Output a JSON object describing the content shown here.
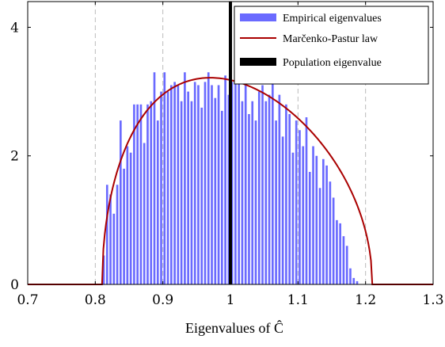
{
  "chart_data": {
    "type": "bar",
    "xlabel": "Eigenvalues of Ĉ",
    "ylabel": "",
    "xlim": [
      0.7,
      1.3
    ],
    "ylim": [
      0,
      4.4
    ],
    "x_ticks": [
      "0.7",
      "0.8",
      "0.9",
      "1",
      "1.1",
      "1.2",
      "1.3"
    ],
    "y_ticks": [
      "0",
      "2",
      "4"
    ],
    "grid": "vertical dashed at 0.8, 0.9, 1.1, 1.2",
    "legend_position": "top-right",
    "bin_width": 0.005,
    "series": [
      {
        "name": "Empirical eigenvalues",
        "kind": "histogram",
        "color": "#6a6aff",
        "bin_centers": [
          0.8125,
          0.8175,
          0.8225,
          0.8275,
          0.8325,
          0.8375,
          0.8425,
          0.8475,
          0.8525,
          0.8575,
          0.8625,
          0.8675,
          0.8725,
          0.8775,
          0.8825,
          0.8875,
          0.8925,
          0.8975,
          0.9025,
          0.9075,
          0.9125,
          0.9175,
          0.9225,
          0.9275,
          0.9325,
          0.9375,
          0.9425,
          0.9475,
          0.9525,
          0.9575,
          0.9625,
          0.9675,
          0.9725,
          0.9775,
          0.9825,
          0.9875,
          0.9925,
          0.9975,
          1.0025,
          1.0075,
          1.0125,
          1.0175,
          1.0225,
          1.0275,
          1.0325,
          1.0375,
          1.0425,
          1.0475,
          1.0525,
          1.0575,
          1.0625,
          1.0675,
          1.0725,
          1.0775,
          1.0825,
          1.0875,
          1.0925,
          1.0975,
          1.1025,
          1.1075,
          1.1125,
          1.1175,
          1.1225,
          1.1275,
          1.1325,
          1.1375,
          1.1425,
          1.1475,
          1.1525,
          1.1575,
          1.1625,
          1.1675,
          1.1725,
          1.1775,
          1.1825,
          1.1875,
          1.1925,
          1.1975,
          1.2025,
          1.2075
        ],
        "values": [
          0.45,
          1.55,
          1.4,
          1.1,
          1.55,
          2.55,
          1.8,
          2.15,
          2.05,
          2.8,
          2.8,
          2.8,
          2.2,
          2.8,
          2.85,
          3.3,
          2.55,
          3.0,
          3.3,
          3.0,
          3.1,
          3.15,
          3.1,
          2.85,
          3.3,
          3.0,
          2.85,
          3.15,
          3.1,
          2.75,
          3.15,
          3.3,
          3.1,
          2.9,
          3.1,
          2.7,
          3.25,
          2.95,
          3.15,
          3.3,
          3.15,
          2.85,
          3.15,
          2.65,
          2.85,
          2.55,
          3.0,
          3.1,
          2.85,
          2.95,
          3.3,
          2.55,
          2.95,
          2.3,
          2.8,
          2.65,
          2.05,
          2.55,
          2.4,
          2.15,
          2.6,
          1.75,
          2.15,
          2.0,
          1.5,
          1.95,
          1.85,
          1.6,
          1.35,
          1.0,
          0.95,
          0.75,
          0.6,
          0.25,
          0.1,
          0.05,
          0,
          0,
          0,
          0
        ]
      },
      {
        "name": "Marčenko-Pastur law",
        "kind": "line",
        "color": "#aa0000",
        "a": 0.81,
        "b": 1.21,
        "x": [
          0.7,
          0.81,
          0.82,
          0.83,
          0.84,
          0.85,
          0.86,
          0.87,
          0.88,
          0.89,
          0.9,
          0.91,
          0.92,
          0.93,
          0.94,
          0.95,
          0.96,
          0.97,
          0.98,
          0.99,
          1.0,
          1.01,
          1.02,
          1.03,
          1.04,
          1.05,
          1.06,
          1.07,
          1.08,
          1.09,
          1.1,
          1.11,
          1.12,
          1.13,
          1.14,
          1.15,
          1.16,
          1.17,
          1.18,
          1.19,
          1.2,
          1.21,
          1.3
        ],
        "y": [
          0,
          0,
          1.215,
          1.681,
          2.013,
          2.267,
          2.468,
          2.628,
          2.754,
          2.853,
          2.929,
          2.985,
          3.023,
          3.046,
          3.055,
          3.053,
          3.04,
          3.018,
          2.988,
          2.951,
          2.908,
          2.859,
          2.805,
          2.745,
          2.681,
          2.613,
          2.54,
          2.463,
          2.381,
          2.296,
          2.205,
          2.11,
          2.009,
          1.901,
          1.786,
          1.661,
          1.524,
          1.37,
          1.189,
          0.961,
          0.64,
          0,
          0
        ]
      },
      {
        "name": "Population eigenvalue",
        "kind": "vertical-line",
        "color": "#000000",
        "x": 1
      }
    ]
  }
}
